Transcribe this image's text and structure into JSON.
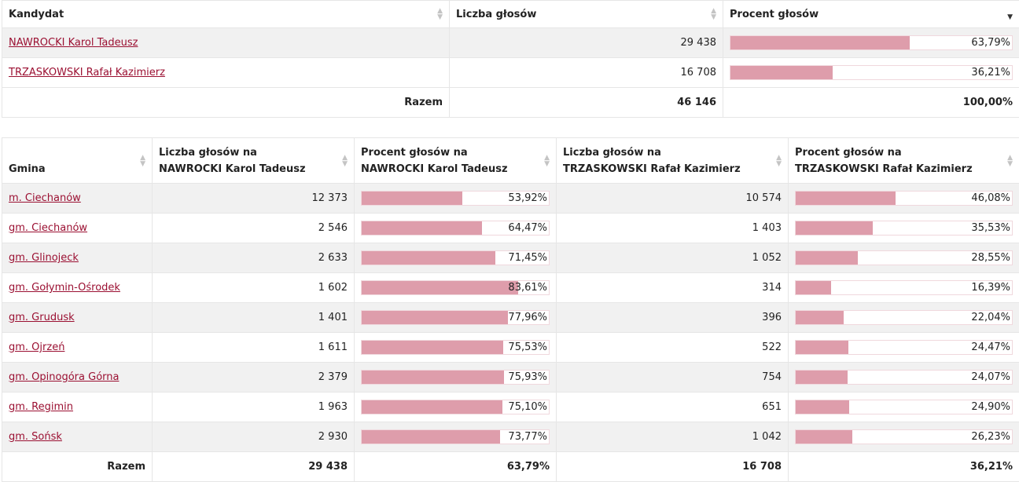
{
  "summary": {
    "headers": {
      "candidate": "Kandydat",
      "votes": "Liczba głosów",
      "percent": "Procent głosów"
    },
    "rows": [
      {
        "name": "NAWROCKI Karol Tadeusz",
        "votes": "29 438",
        "percent_label": "63,79%",
        "percent": 63.79
      },
      {
        "name": "TRZASKOWSKI Rafał Kazimierz",
        "votes": "16 708",
        "percent_label": "36,21%",
        "percent": 36.21
      }
    ],
    "total": {
      "label": "Razem",
      "votes": "46 146",
      "percent": "100,00%"
    }
  },
  "gminy": {
    "headers": {
      "gmina": "Gmina",
      "votes_a_1": "Liczba głosów na",
      "votes_a_2": "NAWROCKI Karol Tadeusz",
      "pct_a_1": "Procent głosów na",
      "pct_a_2": "NAWROCKI Karol Tadeusz",
      "votes_b_1": "Liczba głosów na",
      "votes_b_2": "TRZASKOWSKI Rafał Kazimierz",
      "pct_b_1": "Procent głosów na",
      "pct_b_2": "TRZASKOWSKI Rafał Kazimierz"
    },
    "rows": [
      {
        "name": "m. Ciechanów",
        "votes_a": "12 373",
        "pct_a_label": "53,92%",
        "pct_a": 53.92,
        "votes_b": "10 574",
        "pct_b_label": "46,08%",
        "pct_b": 46.08
      },
      {
        "name": "gm. Ciechanów",
        "votes_a": "2 546",
        "pct_a_label": "64,47%",
        "pct_a": 64.47,
        "votes_b": "1 403",
        "pct_b_label": "35,53%",
        "pct_b": 35.53
      },
      {
        "name": "gm. Glinojeck",
        "votes_a": "2 633",
        "pct_a_label": "71,45%",
        "pct_a": 71.45,
        "votes_b": "1 052",
        "pct_b_label": "28,55%",
        "pct_b": 28.55
      },
      {
        "name": "gm. Gołymin-Ośrodek",
        "votes_a": "1 602",
        "pct_a_label": "83,61%",
        "pct_a": 83.61,
        "votes_b": "314",
        "pct_b_label": "16,39%",
        "pct_b": 16.39
      },
      {
        "name": "gm. Grudusk",
        "votes_a": "1 401",
        "pct_a_label": "77,96%",
        "pct_a": 77.96,
        "votes_b": "396",
        "pct_b_label": "22,04%",
        "pct_b": 22.04
      },
      {
        "name": "gm. Ojrzeń",
        "votes_a": "1 611",
        "pct_a_label": "75,53%",
        "pct_a": 75.53,
        "votes_b": "522",
        "pct_b_label": "24,47%",
        "pct_b": 24.47
      },
      {
        "name": "gm. Opinogóra Górna",
        "votes_a": "2 379",
        "pct_a_label": "75,93%",
        "pct_a": 75.93,
        "votes_b": "754",
        "pct_b_label": "24,07%",
        "pct_b": 24.07
      },
      {
        "name": "gm. Regimin",
        "votes_a": "1 963",
        "pct_a_label": "75,10%",
        "pct_a": 75.1,
        "votes_b": "651",
        "pct_b_label": "24,90%",
        "pct_b": 24.9
      },
      {
        "name": "gm. Sońsk",
        "votes_a": "2 930",
        "pct_a_label": "73,77%",
        "pct_a": 73.77,
        "votes_b": "1 042",
        "pct_b_label": "26,23%",
        "pct_b": 26.23
      }
    ],
    "total": {
      "label": "Razem",
      "votes_a": "29 438",
      "pct_a": "63,79%",
      "votes_b": "16 708",
      "pct_b": "36,21%"
    }
  },
  "sort_icons": {
    "inactive": "sort-both-icon",
    "active_desc": "sort-desc-icon"
  },
  "colors": {
    "bar_fill": "#de9dab",
    "link": "#9b1032",
    "row_alt": "#f1f1f1"
  }
}
